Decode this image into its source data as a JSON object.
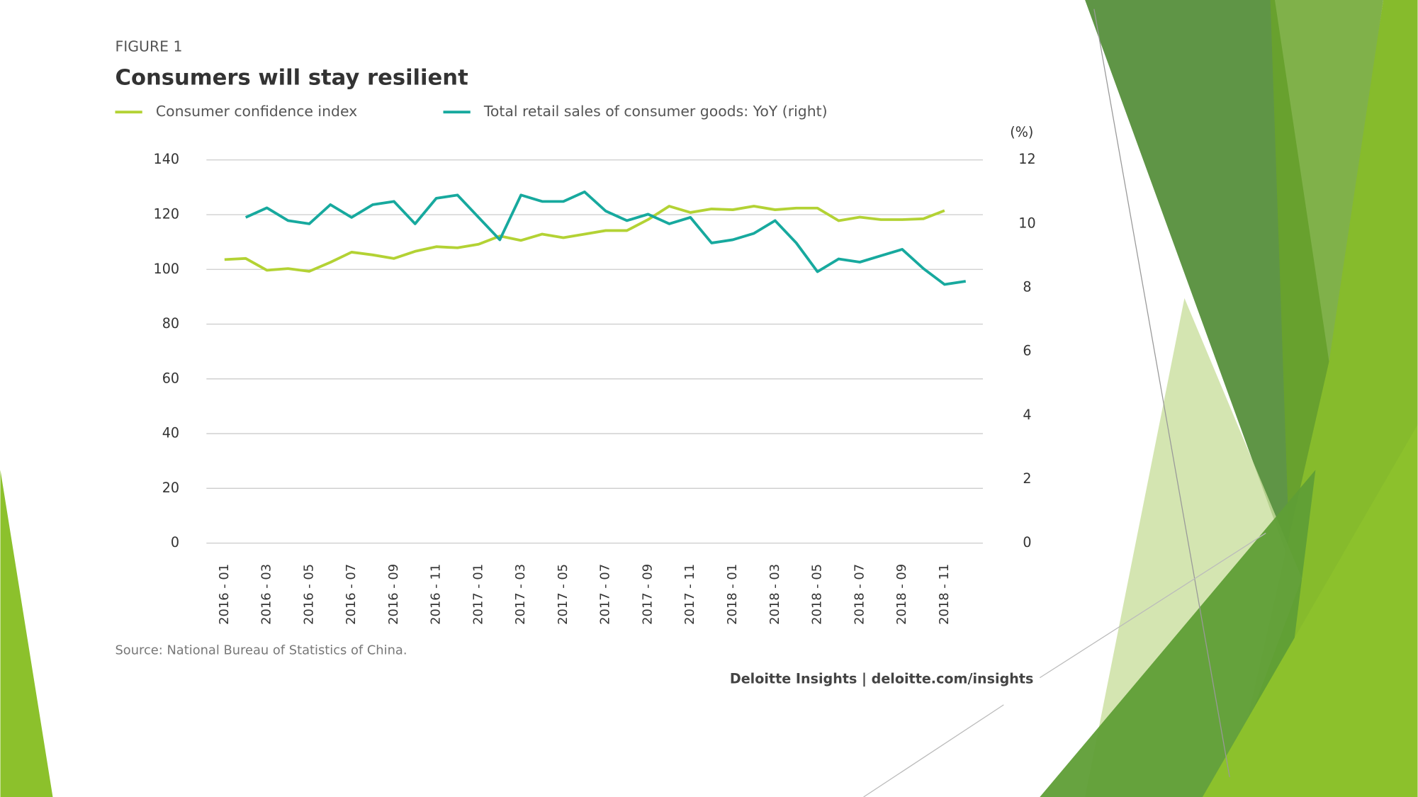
{
  "chart_data": {
    "type": "line",
    "figure_label": "FIGURE 1",
    "title": "Consumers will stay resilient",
    "categories": [
      "2016 - 01",
      null,
      "2016 - 03",
      null,
      "2016 - 05",
      null,
      "2016 - 07",
      null,
      "2016 - 09",
      null,
      "2016 - 11",
      null,
      "2017 - 01",
      null,
      "2017 - 03",
      null,
      "2017 - 05",
      null,
      "2017 - 07",
      null,
      "2017 - 09",
      null,
      "2017 - 11",
      null,
      "2018 - 01",
      null,
      "2018 - 03",
      null,
      "2018 - 05",
      null,
      "2018 - 07",
      null,
      "2018 - 09",
      null,
      "2018 - 11",
      null
    ],
    "series": [
      {
        "name": "Consumer confidence index",
        "color": "#b3d234",
        "axis": "y",
        "values": [
          103.6,
          104,
          99.7,
          100.3,
          99.3,
          102.6,
          106.3,
          105.3,
          104,
          106.6,
          108.3,
          107.9,
          109.2,
          112.2,
          110.6,
          112.9,
          111.6,
          112.9,
          114.2,
          114.2,
          118.2,
          123.1,
          120.8,
          122.1,
          121.8,
          123.1,
          121.8,
          122.4,
          122.4,
          117.8,
          119.1,
          118.2,
          118.2,
          118.5,
          121.5,
          null
        ]
      },
      {
        "name": "Total retail sales of consumer goods: YoY (right)",
        "color": "#17a99e",
        "axis": "y2",
        "values": [
          null,
          10.2,
          10.5,
          10.1,
          10.0,
          10.6,
          10.2,
          10.6,
          10.7,
          10.0,
          10.8,
          10.9,
          10.2,
          9.5,
          10.9,
          10.7,
          10.7,
          11.0,
          10.4,
          10.1,
          10.3,
          10.0,
          10.2,
          9.4,
          9.5,
          9.7,
          10.1,
          9.4,
          8.5,
          8.9,
          8.8,
          9.0,
          9.2,
          8.6,
          8.1,
          8.2
        ]
      }
    ],
    "ylim": [
      0,
      140
    ],
    "yticks": [
      0,
      20,
      40,
      60,
      80,
      100,
      120,
      140
    ],
    "y2lim": [
      0,
      12
    ],
    "y2ticks": [
      0,
      2,
      4,
      6,
      8,
      10,
      12
    ],
    "y2_label": "(%)",
    "grid": true,
    "source": "Source: National Bureau of Statistics of China.",
    "footer": "Deloitte Insights | deloitte.com/insights"
  }
}
